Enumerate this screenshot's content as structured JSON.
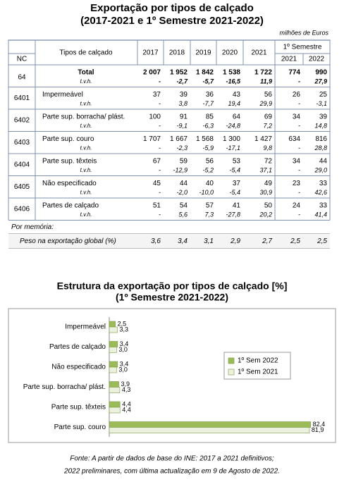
{
  "table": {
    "title": [
      "Exportação por tipos de calçado",
      "(2017-2021 e 1º Semestre 2021-2022)"
    ],
    "unit": "milhões de Euros",
    "header": {
      "nc": "NC",
      "type": "Tipos de calçado",
      "years": [
        "2017",
        "2018",
        "2019",
        "2020",
        "2021"
      ],
      "semester": "1º Semestre",
      "semester_years": [
        "2021",
        "2022"
      ]
    },
    "rows": [
      {
        "nc": "64",
        "name": "Total",
        "values": [
          "2 007",
          "1 952",
          "1 842",
          "1 538",
          "1 722",
          "774",
          "990"
        ],
        "tvh_label": "t.v.h.",
        "tvh": [
          "-",
          "-2,7",
          "-5,7",
          "-16,5",
          "11,9",
          "-",
          "27,9"
        ]
      },
      {
        "nc": "6401",
        "name": "Impermeável",
        "values": [
          "37",
          "39",
          "36",
          "43",
          "56",
          "26",
          "25"
        ],
        "tvh_label": "t.v.h.",
        "tvh": [
          "-",
          "3,8",
          "-7,7",
          "19,4",
          "29,9",
          "-",
          "-3,1"
        ]
      },
      {
        "nc": "6402",
        "name": "Parte sup. borracha/ plást.",
        "values": [
          "100",
          "91",
          "85",
          "64",
          "69",
          "34",
          "39"
        ],
        "tvh_label": "t.v.h.",
        "tvh": [
          "-",
          "-9,1",
          "-6,3",
          "-24,8",
          "7,2",
          "-",
          "14,8"
        ]
      },
      {
        "nc": "6403",
        "name": "Parte sup. couro",
        "values": [
          "1 707",
          "1 667",
          "1 568",
          "1 300",
          "1 427",
          "634",
          "816"
        ],
        "tvh_label": "t.v.h.",
        "tvh": [
          "-",
          "-2,3",
          "-5,9",
          "-17,1",
          "9,8",
          "-",
          "28,8"
        ]
      },
      {
        "nc": "6404",
        "name": "Parte sup. têxteis",
        "values": [
          "67",
          "59",
          "56",
          "53",
          "72",
          "34",
          "44"
        ],
        "tvh_label": "t.v.h.",
        "tvh": [
          "-",
          "-12,9",
          "-5,2",
          "-5,4",
          "37,1",
          "-",
          "29,0"
        ]
      },
      {
        "nc": "6405",
        "name": "Não especificado",
        "values": [
          "45",
          "44",
          "40",
          "37",
          "49",
          "23",
          "33"
        ],
        "tvh_label": "t.v.h.",
        "tvh": [
          "-",
          "-2,0",
          "-10,0",
          "-5,4",
          "30,9",
          "-",
          "42,6"
        ]
      },
      {
        "nc": "6406",
        "name": "Partes de calçado",
        "values": [
          "51",
          "54",
          "57",
          "41",
          "50",
          "24",
          "33"
        ],
        "tvh_label": "t.v.h.",
        "tvh": [
          "-",
          "5,6",
          "7,3",
          "-27,8",
          "20,2",
          "-",
          "41,4"
        ]
      }
    ],
    "memo": {
      "label": "Por memória:",
      "name": "Peso na exportação global (%)",
      "values": [
        "3,6",
        "3,4",
        "3,1",
        "2,9",
        "2,7",
        "2,5",
        "2,5"
      ]
    }
  },
  "chart_data": {
    "type": "hbar",
    "title": [
      "Estrutura da exportação por tipos de calçado [%]",
      "(1º Semestre 2021-2022)"
    ],
    "categories": [
      "Impermeável",
      "Partes de calçado",
      "Não especificado",
      "Parte sup. borracha/ plást.",
      "Parte sup. têxteis",
      "Parte sup. couro"
    ],
    "series": [
      {
        "name": "1º Sem 2022",
        "color": "#9bbb59",
        "values": [
          2.5,
          3.4,
          3.4,
          3.9,
          4.4,
          82.4
        ],
        "value_labels": [
          "2,5",
          "3,4",
          "3,4",
          "3,9",
          "4,4",
          "82,4"
        ]
      },
      {
        "name": "1º Sem 2021",
        "color": "#ebf1de",
        "values": [
          3.3,
          3.0,
          3.0,
          4.3,
          4.4,
          81.9
        ],
        "value_labels": [
          "3,3",
          "3,0",
          "3,0",
          "4,3",
          "4,4",
          "81,9"
        ]
      }
    ],
    "xlim": [
      0,
      90
    ],
    "legend": "right"
  },
  "footer": [
    "Fonte: A partir de dados de base do INE: 2017 a 2021 definitivos;",
    "2022 preliminares, com última actualização em 9 de Agosto de 2022."
  ]
}
